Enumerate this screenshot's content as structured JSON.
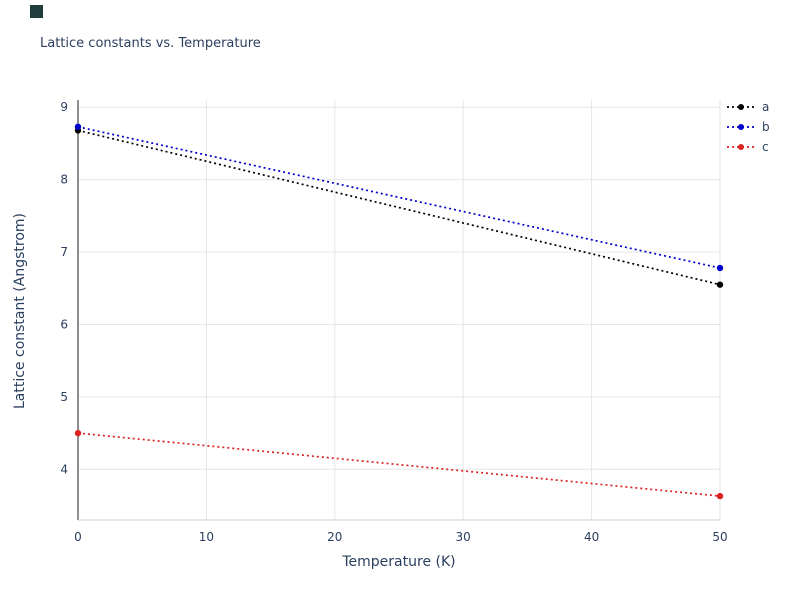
{
  "page": {
    "corner_logo_color": "#1f3d3d",
    "text_color": "#2a3f5f",
    "grid_color": "#e6e6e6",
    "axis_spine_color": "#444444",
    "bottom_spine_color": "#cccccc"
  },
  "chart_data": {
    "type": "line",
    "title": "Lattice constants vs. Temperature",
    "xlabel": "Temperature (K)",
    "ylabel": "Lattice constant (Angstrom)",
    "xlim": [
      0,
      50
    ],
    "ylim": [
      3.3,
      9.1
    ],
    "xticks": [
      0,
      10,
      20,
      30,
      40,
      50
    ],
    "yticks": [
      4,
      5,
      6,
      7,
      8,
      9
    ],
    "grid": true,
    "legend_position": "top-right-outside",
    "line_style": "dotted",
    "x": [
      0,
      50
    ],
    "series": [
      {
        "name": "a",
        "color": "#000000",
        "values": [
          8.68,
          6.55
        ]
      },
      {
        "name": "b",
        "color": "#0000cc",
        "values": [
          8.73,
          6.78
        ]
      },
      {
        "name": "c",
        "color": "#dd2222",
        "values": [
          4.5,
          3.63
        ]
      }
    ]
  }
}
